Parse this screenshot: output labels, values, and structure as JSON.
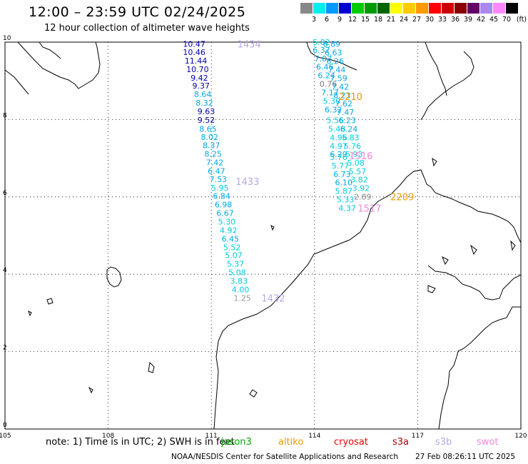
{
  "header": {
    "title": "12:00 – 23:59 UTC 02/24/2025",
    "subtitle": "12 hour collection of altimeter wave heights"
  },
  "scale": {
    "unit": "(ft)",
    "entries": [
      {
        "label": "3",
        "color": "#888888"
      },
      {
        "label": "6",
        "color": "#00eeee"
      },
      {
        "label": "9",
        "color": "#0099ff"
      },
      {
        "label": "12",
        "color": "#0000cc"
      },
      {
        "label": "15",
        "color": "#00cc00"
      },
      {
        "label": "18",
        "color": "#009900"
      },
      {
        "label": "21",
        "color": "#006600"
      },
      {
        "label": "24",
        "color": "#ffff00"
      },
      {
        "label": "27",
        "color": "#ffcc00"
      },
      {
        "label": "30",
        "color": "#ff9900"
      },
      {
        "label": "33",
        "color": "#ff0000"
      },
      {
        "label": "36",
        "color": "#cc0000"
      },
      {
        "label": "39",
        "color": "#880000"
      },
      {
        "label": "42",
        "color": "#660066"
      },
      {
        "label": "45",
        "color": "#aa88ee"
      },
      {
        "label": "70",
        "color": "#ff88ff"
      },
      {
        "label": "",
        "color": "#000000"
      }
    ]
  },
  "map": {
    "lon_ticks": [
      "105",
      "108",
      "111",
      "114",
      "117",
      "120"
    ],
    "lat_ticks": [
      "0",
      "2",
      "4",
      "6",
      "8",
      "10"
    ],
    "tracks": [
      {
        "label": "1434",
        "label_color": "#b8a8e8",
        "label_lon": 112.1,
        "label_lat": 9.95,
        "points": [
          {
            "v": "10.47",
            "c": "#0000aa",
            "lon": 110.5,
            "lat": 9.95
          },
          {
            "v": "10.46",
            "c": "#0000aa",
            "lon": 110.5,
            "lat": 9.74
          },
          {
            "v": "11.44",
            "c": "#0000aa",
            "lon": 110.55,
            "lat": 9.52
          },
          {
            "v": "10.70",
            "c": "#0000aa",
            "lon": 110.6,
            "lat": 9.3
          },
          {
            "v": "9.42",
            "c": "#0000aa",
            "lon": 110.65,
            "lat": 9.08
          },
          {
            "v": "9.37",
            "c": "#0000aa",
            "lon": 110.7,
            "lat": 8.87
          },
          {
            "v": "8.64",
            "c": "#00a8e8",
            "lon": 110.75,
            "lat": 8.65
          },
          {
            "v": "8.32",
            "c": "#00a8e8",
            "lon": 110.8,
            "lat": 8.43
          },
          {
            "v": "9.63",
            "c": "#0000aa",
            "lon": 110.85,
            "lat": 8.21
          },
          {
            "v": "9.52",
            "c": "#0000aa",
            "lon": 110.85,
            "lat": 7.99
          },
          {
            "v": "8.65",
            "c": "#00a8e8",
            "lon": 110.9,
            "lat": 7.76
          },
          {
            "v": "8.02",
            "c": "#00a8e8",
            "lon": 110.95,
            "lat": 7.55
          },
          {
            "v": "8.37",
            "c": "#00a8e8",
            "lon": 111.0,
            "lat": 7.33
          },
          {
            "v": "8.25",
            "c": "#00a8e8",
            "lon": 111.05,
            "lat": 7.11
          },
          {
            "v": "7.42",
            "c": "#00a8e8",
            "lon": 111.1,
            "lat": 6.89
          },
          {
            "v": "6.47",
            "c": "#00a8e8",
            "lon": 111.15,
            "lat": 6.67
          },
          {
            "v": "7.53",
            "c": "#00a8e8",
            "lon": 111.2,
            "lat": 6.46
          },
          {
            "v": "5.95",
            "c": "#00cce0",
            "lon": 111.25,
            "lat": 6.24
          },
          {
            "v": "6.84",
            "c": "#00a8e8",
            "lon": 111.3,
            "lat": 6.02
          },
          {
            "v": "6.98",
            "c": "#00a8e8",
            "lon": 111.35,
            "lat": 5.8
          },
          {
            "v": "6.67",
            "c": "#00a8e8",
            "lon": 111.4,
            "lat": 5.58
          },
          {
            "v": "5.30",
            "c": "#00cce0",
            "lon": 111.45,
            "lat": 5.36
          },
          {
            "v": "4.92",
            "c": "#00cce0",
            "lon": 111.5,
            "lat": 5.14
          },
          {
            "v": "6.45",
            "c": "#00a8e8",
            "lon": 111.55,
            "lat": 4.92
          },
          {
            "v": "5.52",
            "c": "#00cce0",
            "lon": 111.6,
            "lat": 4.7
          },
          {
            "v": "5.07",
            "c": "#00cce0",
            "lon": 111.65,
            "lat": 4.49
          },
          {
            "v": "5.37",
            "c": "#00cce0",
            "lon": 111.7,
            "lat": 4.27
          },
          {
            "v": "5.08",
            "c": "#00cce0",
            "lon": 111.75,
            "lat": 4.05
          },
          {
            "v": "3.83",
            "c": "#00cce0",
            "lon": 111.8,
            "lat": 3.83
          },
          {
            "v": "4.00",
            "c": "#00cce0",
            "lon": 111.85,
            "lat": 3.61
          },
          {
            "v": "1.25",
            "c": "#999999",
            "lon": 111.9,
            "lat": 3.39
          }
        ]
      },
      {
        "label": "1433",
        "label_color": "#b8a8e8",
        "label_lon": 112.05,
        "label_lat": 6.4,
        "points": []
      },
      {
        "label": "1432",
        "label_color": "#b8a8e8",
        "label_lon": 112.8,
        "label_lat": 3.39,
        "points": []
      },
      {
        "label": "2210",
        "label_color": "#ee9900",
        "label_lon": 115.05,
        "label_lat": 8.6,
        "points": [
          {
            "v": "5.82",
            "c": "#00cce0",
            "lon": 114.2,
            "lat": 10.0
          },
          {
            "v": "6.89",
            "c": "#00a8e8",
            "lon": 114.5,
            "lat": 9.95
          },
          {
            "v": "6.37",
            "c": "#00a8e8",
            "lon": 114.2,
            "lat": 9.8
          },
          {
            "v": "6.63",
            "c": "#00a8e8",
            "lon": 114.55,
            "lat": 9.73
          },
          {
            "v": "7.07",
            "c": "#00a8e8",
            "lon": 114.25,
            "lat": 9.58
          },
          {
            "v": "6.26",
            "c": "#00a8e8",
            "lon": 114.6,
            "lat": 9.51
          },
          {
            "v": "6.46",
            "c": "#00a8e8",
            "lon": 114.3,
            "lat": 9.36
          },
          {
            "v": "7.44",
            "c": "#00a8e8",
            "lon": 114.65,
            "lat": 9.29
          },
          {
            "v": "6.24",
            "c": "#00a8e8",
            "lon": 114.35,
            "lat": 9.14
          },
          {
            "v": "7.59",
            "c": "#00a8e8",
            "lon": 114.7,
            "lat": 9.07
          },
          {
            "v": "0.76",
            "c": "#777777",
            "lon": 114.4,
            "lat": 8.92
          },
          {
            "v": "7.42",
            "c": "#00a8e8",
            "lon": 114.75,
            "lat": 8.85
          },
          {
            "v": "7.17",
            "c": "#00a8e8",
            "lon": 114.45,
            "lat": 8.7
          },
          {
            "v": "8.23",
            "c": "#00a8e8",
            "lon": 114.8,
            "lat": 8.63
          },
          {
            "v": "5.30",
            "c": "#00cce0",
            "lon": 114.5,
            "lat": 8.48
          },
          {
            "v": "7.62",
            "c": "#00a8e8",
            "lon": 114.85,
            "lat": 8.41
          },
          {
            "v": "6.32",
            "c": "#00a8e8",
            "lon": 114.55,
            "lat": 8.26
          },
          {
            "v": "7.47",
            "c": "#00a8e8",
            "lon": 114.9,
            "lat": 8.19
          },
          {
            "v": "5.56",
            "c": "#00cce0",
            "lon": 114.6,
            "lat": 7.98
          },
          {
            "v": "6.23",
            "c": "#00a8e8",
            "lon": 114.95,
            "lat": 7.98
          },
          {
            "v": "5.48",
            "c": "#00cce0",
            "lon": 114.65,
            "lat": 7.76
          },
          {
            "v": "6.24",
            "c": "#00a8e8",
            "lon": 115.0,
            "lat": 7.76
          },
          {
            "v": "4.96",
            "c": "#00cce0",
            "lon": 114.7,
            "lat": 7.54
          },
          {
            "v": "5.83",
            "c": "#00cce0",
            "lon": 115.05,
            "lat": 7.54
          },
          {
            "v": "4.97",
            "c": "#00cce0",
            "lon": 114.7,
            "lat": 7.32
          },
          {
            "v": "5.76",
            "c": "#00cce0",
            "lon": 115.1,
            "lat": 7.32
          }
        ]
      },
      {
        "label": "1516",
        "label_color": "#ee88dd",
        "label_lon": 115.35,
        "label_lat": 7.07,
        "points": [
          {
            "v": "6.29",
            "c": "#00a8e8",
            "lon": 114.7,
            "lat": 7.1
          },
          {
            "v": "5.76",
            "c": "#00cce0",
            "lon": 114.7,
            "lat": 7.03
          },
          {
            "v": "5.93",
            "c": "#00cce0",
            "lon": 115.15,
            "lat": 7.1
          },
          {
            "v": "5.08",
            "c": "#00cce0",
            "lon": 115.2,
            "lat": 6.88
          },
          {
            "v": "5.77",
            "c": "#00cce0",
            "lon": 114.75,
            "lat": 6.81
          },
          {
            "v": "5.57",
            "c": "#00cce0",
            "lon": 115.25,
            "lat": 6.66
          },
          {
            "v": "6.73",
            "c": "#00a8e8",
            "lon": 114.8,
            "lat": 6.59
          },
          {
            "v": "3.82",
            "c": "#00cce0",
            "lon": 115.3,
            "lat": 6.45
          },
          {
            "v": "6.10",
            "c": "#00a8e8",
            "lon": 114.85,
            "lat": 6.37
          },
          {
            "v": "3.92",
            "c": "#00cce0",
            "lon": 115.35,
            "lat": 6.23
          },
          {
            "v": "5.87",
            "c": "#00cce0",
            "lon": 114.85,
            "lat": 6.15
          },
          {
            "v": "2.89",
            "c": "#888888",
            "lon": 115.4,
            "lat": 6.01
          },
          {
            "v": "5.33",
            "c": "#00cce0",
            "lon": 114.9,
            "lat": 5.93
          },
          {
            "v": "4.37",
            "c": "#00cce0",
            "lon": 114.95,
            "lat": 5.71
          }
        ]
      },
      {
        "label": "2209",
        "label_color": "#ee9900",
        "label_lon": 116.55,
        "label_lat": 6.01,
        "points": []
      },
      {
        "label": "1517",
        "label_color": "#ee88dd",
        "label_lon": 115.6,
        "label_lat": 5.71,
        "points": []
      }
    ]
  },
  "footer": {
    "note": "note:  1) Time is in UTC;  2) SWH is in feet",
    "legend": [
      {
        "label": "jason3",
        "color": "#00aa00"
      },
      {
        "label": "altiko",
        "color": "#ee9900"
      },
      {
        "label": "cryosat",
        "color": "#ee0000"
      },
      {
        "label": "s3a",
        "color": "#aa0000"
      },
      {
        "label": "s3b",
        "color": "#b8a8e8"
      },
      {
        "label": "swot",
        "color": "#ee88dd"
      }
    ],
    "credit": "NOAA/NESDIS Center for Satellite Applications and Research",
    "generated": "27 Feb 08:26:11 UTC 2025"
  }
}
